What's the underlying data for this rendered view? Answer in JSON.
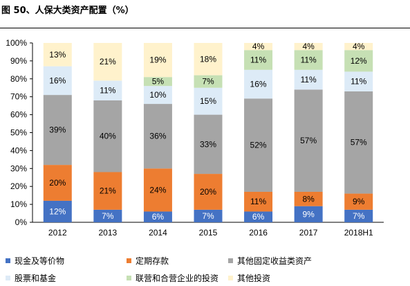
{
  "title": "图 50、人保大类资产配置（%）",
  "chart_data": {
    "type": "bar",
    "stacked": true,
    "categories": [
      "2012",
      "2013",
      "2014",
      "2015",
      "2016",
      "2017",
      "2018H1"
    ],
    "ylim": [
      0,
      100
    ],
    "yticks": [
      "0%",
      "10%",
      "20%",
      "30%",
      "40%",
      "50%",
      "60%",
      "70%",
      "80%",
      "90%",
      "100%"
    ],
    "grid": false,
    "legend_position": "bottom",
    "series": [
      {
        "name": "现金及等价物",
        "color": "#4472C4",
        "label_color": "#ffffff",
        "values": [
          12,
          7,
          6,
          7,
          6,
          9,
          7
        ],
        "labels": [
          "12%",
          "7%",
          "6%",
          "7%",
          "6%",
          "9%",
          "7%"
        ]
      },
      {
        "name": "定期存款",
        "color": "#ED7D31",
        "label_color": "#000000",
        "values": [
          20,
          21,
          24,
          20,
          11,
          8,
          9
        ],
        "labels": [
          "20%",
          "21%",
          "24%",
          "20%",
          "11%",
          "8%",
          "9%"
        ]
      },
      {
        "name": "其他固定收益类资产",
        "color": "#A5A5A5",
        "label_color": "#000000",
        "values": [
          39,
          40,
          36,
          33,
          52,
          57,
          57
        ],
        "labels": [
          "39%",
          "40%",
          "36%",
          "33%",
          "52%",
          "57%",
          "57%"
        ]
      },
      {
        "name": "股票和基金",
        "color": "#DDEBF7",
        "label_color": "#000000",
        "values": [
          16,
          11,
          10,
          15,
          16,
          11,
          11
        ],
        "labels": [
          "16%",
          "11%",
          "10%",
          "15%",
          "16%",
          "11%",
          "11%"
        ]
      },
      {
        "name": "联营和合营企业的投资",
        "color": "#C6E0B4",
        "label_color": "#000000",
        "values": [
          0,
          0,
          5,
          7,
          11,
          11,
          12
        ],
        "labels": [
          "",
          "",
          "5%",
          "7%",
          "11%",
          "11%",
          "12%"
        ]
      },
      {
        "name": "其他投资",
        "color": "#FFF2CC",
        "label_color": "#000000",
        "values": [
          13,
          21,
          19,
          18,
          4,
          4,
          4
        ],
        "labels": [
          "13%",
          "21%",
          "19%",
          "18%",
          "4%",
          "4%",
          "4%"
        ]
      }
    ]
  }
}
